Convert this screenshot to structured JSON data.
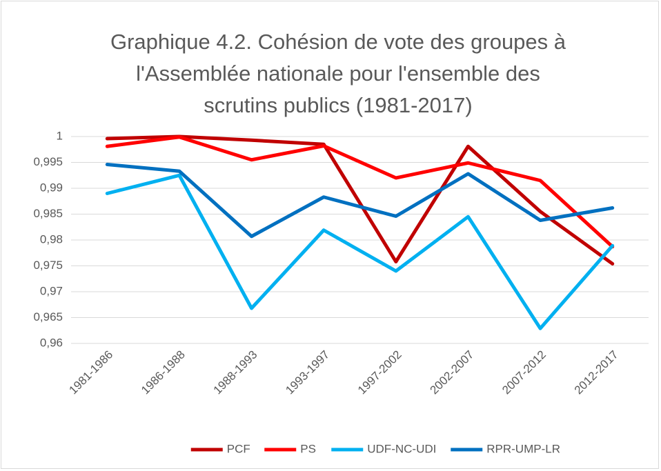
{
  "chart_data": {
    "type": "line",
    "title": "Graphique 4.2. Cohésion de vote des groupes à l'Assemblée nationale pour l'ensemble des scrutins publics (1981-2017)",
    "categories": [
      "1981-1986",
      "1986-1988",
      "1988-1993",
      "1993-1997",
      "1997-2002",
      "2002-2007",
      "2007-2012",
      "2012-2017"
    ],
    "series": [
      {
        "name": "PCF",
        "color": "#c00000",
        "values": [
          0.9996,
          1.0,
          0.9993,
          0.9985,
          0.9758,
          0.9981,
          0.9855,
          0.9754
        ]
      },
      {
        "name": "PS",
        "color": "#ff0000",
        "values": [
          0.9981,
          0.9999,
          0.9955,
          0.9982,
          0.992,
          0.9949,
          0.9915,
          0.9787
        ]
      },
      {
        "name": "UDF-NC-UDI",
        "color": "#00b0f0",
        "values": [
          0.989,
          0.9925,
          0.9668,
          0.9819,
          0.974,
          0.9845,
          0.9629,
          0.9789
        ]
      },
      {
        "name": "RPR-UMP-LR",
        "color": "#0070c0",
        "values": [
          0.9946,
          0.9933,
          0.9807,
          0.9883,
          0.9846,
          0.9928,
          0.9838,
          0.9862
        ]
      }
    ],
    "ylim": [
      0.96,
      1
    ],
    "yticks": [
      {
        "value": 0.96,
        "label": "0,96"
      },
      {
        "value": 0.965,
        "label": "0,965"
      },
      {
        "value": 0.97,
        "label": "0,97"
      },
      {
        "value": 0.975,
        "label": "0,975"
      },
      {
        "value": 0.98,
        "label": "0,98"
      },
      {
        "value": 0.985,
        "label": "0,985"
      },
      {
        "value": 0.99,
        "label": "0,99"
      },
      {
        "value": 0.995,
        "label": "0,995"
      },
      1
    ],
    "grid": true,
    "legend": "bottom"
  }
}
